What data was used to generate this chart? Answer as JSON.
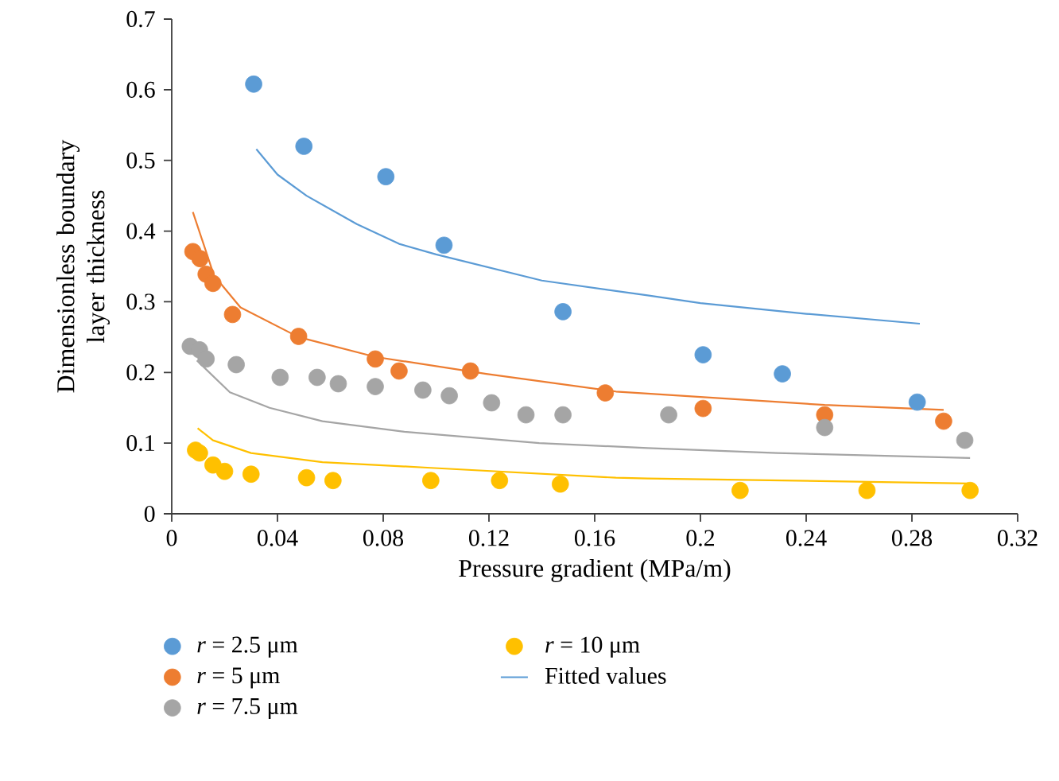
{
  "chart_data": {
    "type": "scatter",
    "xlabel": "Pressure gradient (MPa/m)",
    "ylabel": "Dimensionless boundary layer thickness",
    "xlim": [
      0,
      0.32
    ],
    "ylim": [
      0,
      0.7
    ],
    "xticks": [
      0,
      0.04,
      0.08,
      0.12,
      0.16,
      0.2,
      0.24,
      0.28,
      0.32
    ],
    "yticks": [
      0,
      0.1,
      0.2,
      0.3,
      0.4,
      0.5,
      0.6,
      0.7
    ],
    "legend": "bottom",
    "grid": false,
    "series": [
      {
        "name": "*r* = 2.5 μm",
        "color": "#5b9bd5",
        "marker": "circle",
        "x": [
          0.031,
          0.05,
          0.081,
          0.103,
          0.148,
          0.201,
          0.231,
          0.282
        ],
        "values": [
          0.608,
          0.52,
          0.477,
          0.38,
          0.286,
          0.225,
          0.198,
          0.158
        ]
      },
      {
        "name": "*r* = 5 μm",
        "color": "#ed7d31",
        "marker": "circle",
        "x": [
          0.008,
          0.0107,
          0.013,
          0.0156,
          0.023,
          0.048,
          0.077,
          0.086,
          0.113,
          0.164,
          0.201,
          0.247,
          0.292
        ],
        "values": [
          0.371,
          0.361,
          0.339,
          0.326,
          0.282,
          0.251,
          0.219,
          0.202,
          0.202,
          0.171,
          0.149,
          0.14,
          0.131
        ]
      },
      {
        "name": "*r* = 7.5 μm",
        "color": "#a5a5a5",
        "marker": "circle",
        "x": [
          0.007,
          0.0105,
          0.013,
          0.0244,
          0.041,
          0.055,
          0.063,
          0.077,
          0.095,
          0.105,
          0.121,
          0.134,
          0.148,
          0.188,
          0.247,
          0.3
        ],
        "values": [
          0.237,
          0.232,
          0.219,
          0.211,
          0.193,
          0.193,
          0.184,
          0.18,
          0.175,
          0.167,
          0.157,
          0.14,
          0.14,
          0.14,
          0.122,
          0.104
        ]
      },
      {
        "name": "*r* = 10 μm",
        "color": "#ffc000",
        "marker": "circle",
        "x": [
          0.009,
          0.0105,
          0.0156,
          0.02,
          0.03,
          0.051,
          0.061,
          0.098,
          0.124,
          0.147,
          0.215,
          0.263,
          0.302
        ],
        "values": [
          0.09,
          0.086,
          0.069,
          0.06,
          0.056,
          0.051,
          0.047,
          0.047,
          0.047,
          0.042,
          0.033,
          0.033,
          0.033
        ]
      },
      {
        "name": "Fitted values",
        "type": "line",
        "marker": "none",
        "color": "#5b9bd5",
        "x": [
          0.032,
          0.04,
          0.051,
          0.07,
          0.086,
          0.1,
          0.14,
          0.18,
          0.2,
          0.24,
          0.283
        ],
        "values": [
          0.516,
          0.48,
          0.45,
          0.41,
          0.382,
          0.367,
          0.33,
          0.309,
          0.298,
          0.283,
          0.269
        ]
      },
      {
        "type": "line",
        "marker": "none",
        "color": "#ed7d31",
        "x": [
          0.008,
          0.016,
          0.026,
          0.048,
          0.077,
          0.119,
          0.168,
          0.18,
          0.247,
          0.292
        ],
        "values": [
          0.427,
          0.337,
          0.292,
          0.25,
          0.222,
          0.198,
          0.173,
          0.17,
          0.154,
          0.147
        ]
      },
      {
        "type": "line",
        "marker": "none",
        "color": "#a5a5a5",
        "x": [
          0.0095,
          0.022,
          0.037,
          0.057,
          0.088,
          0.139,
          0.18,
          0.229,
          0.302
        ],
        "values": [
          0.217,
          0.172,
          0.15,
          0.131,
          0.116,
          0.1,
          0.093,
          0.086,
          0.079
        ]
      },
      {
        "type": "line",
        "marker": "none",
        "color": "#ffc000",
        "x": [
          0.0098,
          0.0156,
          0.03,
          0.057,
          0.098,
          0.168,
          0.18,
          0.301
        ],
        "values": [
          0.121,
          0.104,
          0.086,
          0.073,
          0.065,
          0.051,
          0.05,
          0.043
        ]
      }
    ]
  }
}
